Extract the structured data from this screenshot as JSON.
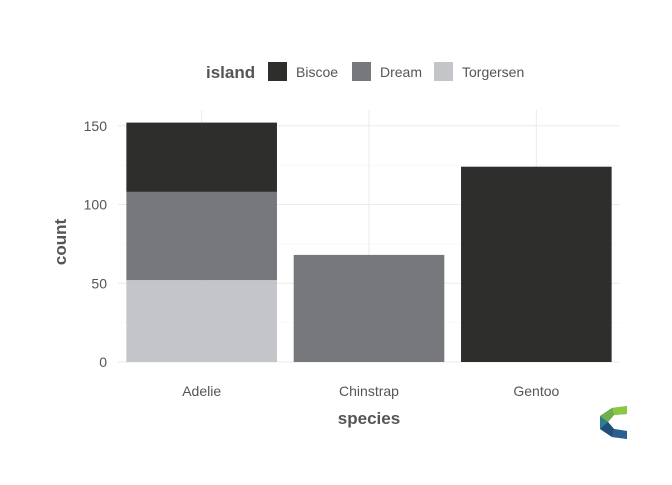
{
  "chart_data": {
    "type": "bar",
    "stacked": true,
    "xlabel": "species",
    "ylabel": "count",
    "categories": [
      "Adelie",
      "Chinstrap",
      "Gentoo"
    ],
    "legend": {
      "title": "island",
      "placement": "top"
    },
    "series": [
      {
        "name": "Biscoe",
        "color": "#2e2e2d",
        "values": [
          44,
          0,
          124
        ]
      },
      {
        "name": "Dream",
        "color": "#77787b",
        "values": [
          56,
          68,
          0
        ]
      },
      {
        "name": "Torgersen",
        "color": "#c4c5c8",
        "values": [
          52,
          0,
          0
        ]
      }
    ],
    "stack_order_bottom_to_top": [
      "Torgersen",
      "Dream",
      "Biscoe"
    ],
    "ylim": [
      0,
      160
    ],
    "yticks": [
      0,
      50,
      100,
      150
    ],
    "grid": true
  },
  "logo": {
    "icon": "c-logo-icon",
    "colors": [
      "#8dc63f",
      "#2e7d8c",
      "#1f4e79"
    ]
  }
}
